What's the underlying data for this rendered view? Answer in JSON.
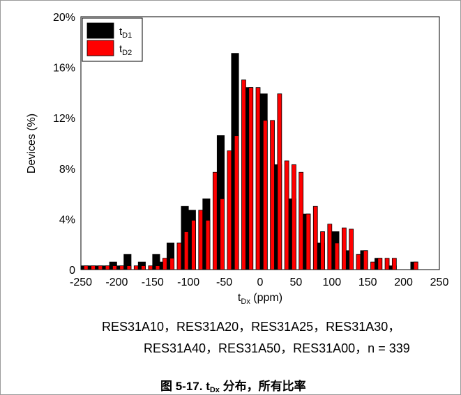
{
  "chart_data": {
    "type": "bar",
    "x": [
      -245,
      -235,
      -225,
      -215,
      -205,
      -195,
      -185,
      -175,
      -165,
      -155,
      -145,
      -135,
      -125,
      -115,
      -105,
      -95,
      -85,
      -75,
      -65,
      -55,
      -45,
      -35,
      -25,
      -15,
      -5,
      5,
      15,
      25,
      35,
      45,
      55,
      65,
      75,
      85,
      95,
      105,
      115,
      125,
      135,
      145,
      155,
      165,
      175,
      185,
      195,
      205,
      215,
      225,
      235,
      245
    ],
    "series": [
      {
        "name": "tD1",
        "color": "#000000",
        "values": [
          0.3,
          0.3,
          0.3,
          0.3,
          0.6,
          0.3,
          1.2,
          0,
          0.6,
          0,
          1.2,
          0.6,
          2.1,
          0,
          5.0,
          4.7,
          0,
          5.6,
          0,
          10.6,
          0,
          17.1,
          0,
          14.4,
          0,
          13.9,
          0,
          8.3,
          0,
          5.6,
          0,
          4.4,
          0,
          2.1,
          0,
          3.0,
          0,
          1.5,
          0,
          1.5,
          0,
          0.9,
          0,
          0.3,
          0,
          0,
          0.6,
          0,
          0,
          0
        ]
      },
      {
        "name": "tD2",
        "color": "#ff0000",
        "values": [
          0.3,
          0.3,
          0.3,
          0.3,
          0.3,
          0.3,
          0.3,
          0.3,
          0.3,
          0.3,
          0.3,
          0.9,
          0.9,
          2.1,
          3.0,
          3.9,
          4.7,
          3.9,
          7.7,
          5.6,
          9.4,
          10.6,
          15.0,
          14.4,
          14.4,
          11.8,
          11.8,
          13.9,
          8.6,
          8.3,
          7.7,
          4.4,
          5.0,
          3.0,
          3.6,
          2.1,
          3.3,
          3.2,
          1.2,
          1.5,
          0.6,
          0.9,
          0.9,
          0.9,
          0,
          0,
          0.6,
          0,
          0,
          0
        ]
      }
    ],
    "legend": {
      "position": "top-left",
      "entries": [
        {
          "main": "t",
          "sub": "D1"
        },
        {
          "main": "t",
          "sub": "D2"
        }
      ]
    },
    "xlabel": {
      "main": "t",
      "sub": "Dx",
      "rest": " (ppm)"
    },
    "ylabel": "Devices (%)",
    "xlim": [
      -250,
      250
    ],
    "ylim": [
      0,
      20
    ],
    "xticks": [
      "-250",
      "-200",
      "-150",
      "-100",
      "-50",
      "0",
      "50",
      "100",
      "150",
      "200",
      "250"
    ],
    "yticks": [
      "0",
      "4%",
      "8%",
      "12%",
      "16%",
      "20%"
    ],
    "grid": false
  },
  "caption": {
    "line1": "RES31A10，RES31A20，RES31A25，RES31A30，",
    "line2": "RES31A40，RES31A50，RES31A00，n = 339"
  },
  "figure_title": {
    "prefix": "图 5-17. t",
    "sub": "Dx",
    "suffix": " 分布，所有比率"
  }
}
